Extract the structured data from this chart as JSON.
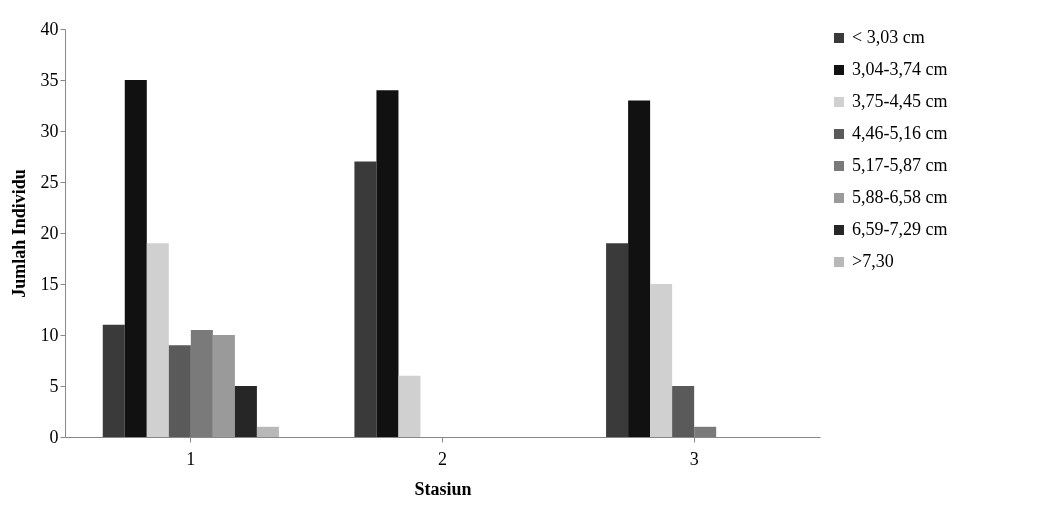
{
  "chart_data": {
    "type": "bar",
    "xlabel": "Stasiun",
    "ylabel": "Jumlah Individu",
    "categories": [
      "1",
      "2",
      "3"
    ],
    "ylim": [
      0,
      40
    ],
    "yticks": [
      0,
      5,
      10,
      15,
      20,
      25,
      30,
      35,
      40
    ],
    "grid": false,
    "legend": "right",
    "series": [
      {
        "name": "< 3,03 cm",
        "color": "#3a3a3a",
        "values": [
          11,
          27,
          19
        ]
      },
      {
        "name": "3,04-3,74 cm",
        "color": "#111111",
        "values": [
          35,
          34,
          33
        ]
      },
      {
        "name": "3,75-4,45 cm",
        "color": "#d0d0d0",
        "values": [
          19,
          6,
          15
        ]
      },
      {
        "name": "4,46-5,16 cm",
        "color": "#5a5a5a",
        "values": [
          9,
          0,
          5
        ]
      },
      {
        "name": "5,17-5,87 cm",
        "color": "#7a7a7a",
        "values": [
          10.5,
          0,
          1
        ]
      },
      {
        "name": "5,88-6,58 cm",
        "color": "#9a9a9a",
        "values": [
          10,
          0,
          0
        ]
      },
      {
        "name": "6,59-7,29 cm",
        "color": "#262626",
        "values": [
          5,
          0,
          0
        ]
      },
      {
        "name": ">7,30",
        "color": "#b8b8b8",
        "values": [
          1,
          0,
          0
        ]
      }
    ]
  }
}
